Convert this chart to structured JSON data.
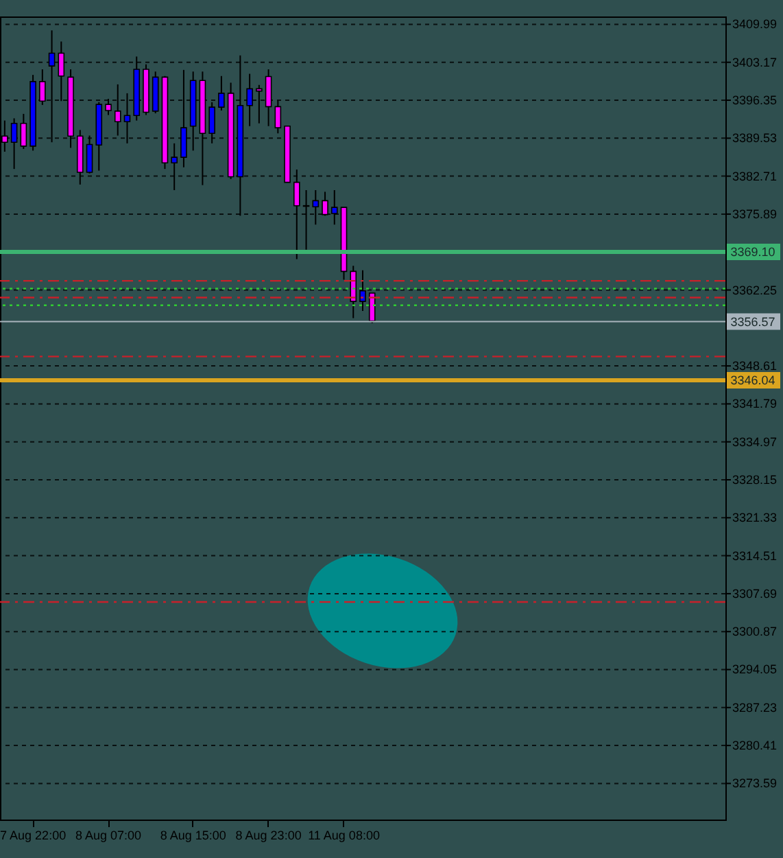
{
  "chart_data": {
    "type": "candlestick",
    "categories": [
      null,
      null,
      null,
      "7 Aug 22:00",
      null,
      null,
      null,
      null,
      null,
      null,
      null,
      "8 Aug 07:00",
      null,
      null,
      null,
      null,
      null,
      null,
      null,
      null,
      "8 Aug 15:00",
      null,
      null,
      null,
      null,
      null,
      null,
      null,
      "8 Aug 23:00",
      null,
      null,
      null,
      null,
      null,
      null,
      null,
      "11 Aug 08:00",
      null,
      null,
      null,
      null,
      null,
      null,
      null,
      null,
      null,
      null,
      null,
      null,
      null,
      null,
      null,
      null,
      null,
      null,
      null,
      null,
      null,
      null,
      null,
      null,
      null,
      null,
      null,
      null,
      null,
      null,
      null,
      null,
      null,
      null,
      null,
      null,
      null,
      null,
      null,
      null
    ],
    "ohlc": [
      [
        3389.9,
        3392.7,
        3387.1,
        3388.8
      ],
      [
        3388.8,
        3393.1,
        3384.0,
        3392.2
      ],
      [
        3392.2,
        3393.9,
        3387.6,
        3388.1
      ],
      [
        3388.1,
        3400.9,
        3387.3,
        3399.7
      ],
      [
        3399.7,
        3401.9,
        3395.5,
        3396.2
      ],
      [
        3402.5,
        3408.9,
        3388.8,
        3404.8
      ],
      [
        3404.8,
        3406.9,
        3396.2,
        3400.7
      ],
      [
        3400.5,
        3401.9,
        3387.8,
        3389.9
      ],
      [
        3389.9,
        3391.0,
        3381.2,
        3383.4
      ],
      [
        3383.4,
        3390.0,
        3383.2,
        3388.4
      ],
      [
        3388.3,
        3396.0,
        3383.7,
        3395.6
      ],
      [
        3395.6,
        3396.6,
        3393.7,
        3394.5
      ],
      [
        3394.4,
        3399.2,
        3390.0,
        3392.5
      ],
      [
        3392.5,
        3397.6,
        3388.6,
        3393.6
      ],
      [
        3393.6,
        3404.2,
        3392.7,
        3401.9
      ],
      [
        3401.9,
        3402.8,
        3393.7,
        3394.2
      ],
      [
        3394.4,
        3401.5,
        3394.0,
        3400.5
      ],
      [
        3400.5,
        3400.7,
        3384.0,
        3385.1
      ],
      [
        3385.1,
        3388.6,
        3380.2,
        3386.1
      ],
      [
        3386.1,
        3401.8,
        3384.3,
        3391.4
      ],
      [
        3391.7,
        3401.5,
        3387.3,
        3399.9
      ],
      [
        3399.9,
        3401.5,
        3381.1,
        3390.4
      ],
      [
        3390.4,
        3396.0,
        3388.6,
        3395.1
      ],
      [
        3395.1,
        3400.7,
        3394.5,
        3397.6
      ],
      [
        3397.6,
        3399.5,
        3382.2,
        3382.6
      ],
      [
        3382.6,
        3404.4,
        3375.6,
        3395.4
      ],
      [
        3395.4,
        3401.1,
        3391.7,
        3398.4
      ],
      [
        3398.4,
        3399.1,
        3392.2,
        3398.0
      ],
      [
        3400.6,
        3401.9,
        3391.7,
        3395.2
      ],
      [
        3395.2,
        3396.3,
        3390.4,
        3391.4
      ],
      [
        3391.7,
        3391.7,
        3381.6,
        3381.6
      ],
      [
        3381.6,
        3383.9,
        3367.8,
        3377.4
      ],
      [
        3377.4,
        3380.2,
        3369.5,
        3377.3
      ],
      [
        3377.2,
        3380.2,
        3374.0,
        3378.3
      ],
      [
        3378.3,
        3379.9,
        3375.6,
        3375.8
      ],
      [
        3376.0,
        3380.2,
        3374.0,
        3377.1
      ],
      [
        3377.1,
        3377.1,
        3364.1,
        3365.6
      ],
      [
        3365.6,
        3366.6,
        3357.2,
        3360.2
      ],
      [
        3360.2,
        3365.8,
        3358.5,
        3362.1
      ],
      [
        3361.7,
        3361.7,
        3356.3,
        3356.7
      ],
      null,
      null,
      null,
      null,
      null,
      null,
      null,
      null,
      null,
      null,
      null,
      null,
      null,
      null,
      null,
      null,
      null,
      null,
      null,
      null,
      null,
      null,
      null,
      null,
      null,
      null,
      null,
      null,
      null,
      null,
      null,
      null,
      null,
      null,
      null,
      null,
      null
    ],
    "colors": [
      "#ff00ff",
      "#0000ff",
      "#ff00ff",
      "#0000ff",
      "#ff00ff",
      "#0000ff",
      "#ff00ff",
      "#ff00ff",
      "#ff00ff",
      "#0000ff",
      "#0000ff",
      "#ff00ff",
      "#ff00ff",
      "#0000ff",
      "#0000ff",
      "#ff00ff",
      "#0000ff",
      "#ff00ff",
      "#0000ff",
      "#0000ff",
      "#0000ff",
      "#ff00ff",
      "#0000ff",
      "#0000ff",
      "#ff00ff",
      "#0000ff",
      "#0000ff",
      "#ff00ff",
      "#ff00ff",
      "#ff00ff",
      "#ff00ff",
      "#ff00ff",
      "#ff00ff",
      "#0000ff",
      "#ff00ff",
      "#0000ff",
      "#ff00ff",
      "#ff00ff",
      "#0000ff",
      "#ff00ff",
      null,
      null,
      null,
      null,
      null,
      null,
      null,
      null,
      null,
      null,
      null,
      null,
      null,
      null,
      null,
      null,
      null,
      null,
      null,
      null,
      null,
      null,
      null,
      null,
      null,
      null,
      null,
      null,
      null,
      null,
      null,
      null,
      null,
      null,
      null,
      null,
      null
    ],
    "ylim": [
      3267.1,
      3411.4
    ],
    "yticks": [
      3409.99,
      3403.17,
      3396.35,
      3389.53,
      3382.71,
      3375.89,
      3362.25,
      3348.61,
      3341.79,
      3334.97,
      3328.15,
      3321.33,
      3314.51,
      3307.69,
      3300.87,
      3294.05,
      3287.23,
      3280.41,
      3273.59
    ],
    "grid": "y",
    "ref_lines": [
      {
        "axis": "y",
        "value": 3369.1,
        "label": "3369.10",
        "color": "#3cb371",
        "line_style": "solid"
      },
      {
        "axis": "y",
        "value": 3356.57,
        "label": "3356.57",
        "color": "#a9b4bd",
        "line_style": "solid"
      },
      {
        "axis": "y",
        "value": 3346.04,
        "label": "3346.04",
        "color": "#daa520",
        "line_style": "solid"
      },
      {
        "axis": "y",
        "value": 3363.9,
        "color": "#c8202a",
        "line_style": "dashed"
      },
      {
        "axis": "y",
        "value": 3360.9,
        "color": "#c8202a",
        "line_style": "dashed"
      },
      {
        "axis": "y",
        "value": 3350.3,
        "color": "#c8202a",
        "line_style": "dashed"
      },
      {
        "axis": "y",
        "value": 3306.2,
        "color": "#c8202a",
        "line_style": "dashed"
      },
      {
        "axis": "y",
        "value": 3362.5,
        "color": "#32cd32",
        "line_style": "dotted"
      },
      {
        "axis": "y",
        "value": 3359.5,
        "color": "#32cd32",
        "line_style": "dotted"
      }
    ]
  }
}
